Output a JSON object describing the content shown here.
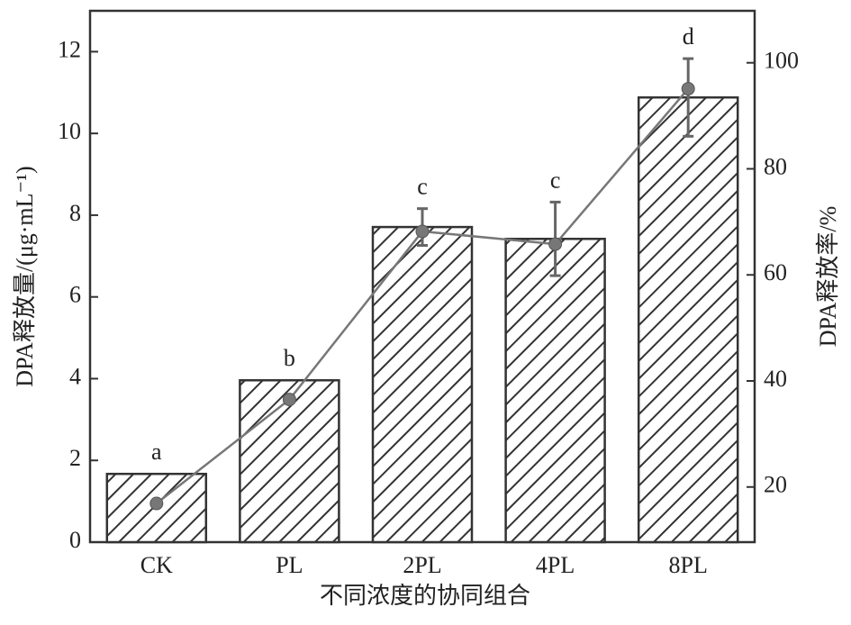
{
  "chart_data": {
    "type": "bar",
    "x_label": "不同浓度的协同组合",
    "y_label": "DPA释放量/(μg·mL⁻¹)",
    "y2_label": "DPA释放率/%",
    "categories": [
      "CK",
      "PL",
      "2PL",
      "4PL",
      "8PL"
    ],
    "bars": {
      "values": [
        1.67,
        3.96,
        7.71,
        7.42,
        10.88
      ],
      "errors": [
        null,
        null,
        0.45,
        0.9,
        0.95
      ],
      "color": "#333333"
    },
    "line": {
      "values": [
        16.9,
        36.5,
        68.2,
        65.8,
        95.1
      ],
      "color": "#777777",
      "axis": "y2"
    },
    "letters": [
      "a",
      "b",
      "c",
      "c",
      "d"
    ],
    "ylim": [
      0,
      13
    ],
    "yticks": [
      0,
      2,
      4,
      6,
      8,
      10,
      12
    ],
    "y2lim": [
      9.6,
      109.8
    ],
    "y2ticks": [
      20,
      40,
      60,
      80,
      100
    ]
  }
}
